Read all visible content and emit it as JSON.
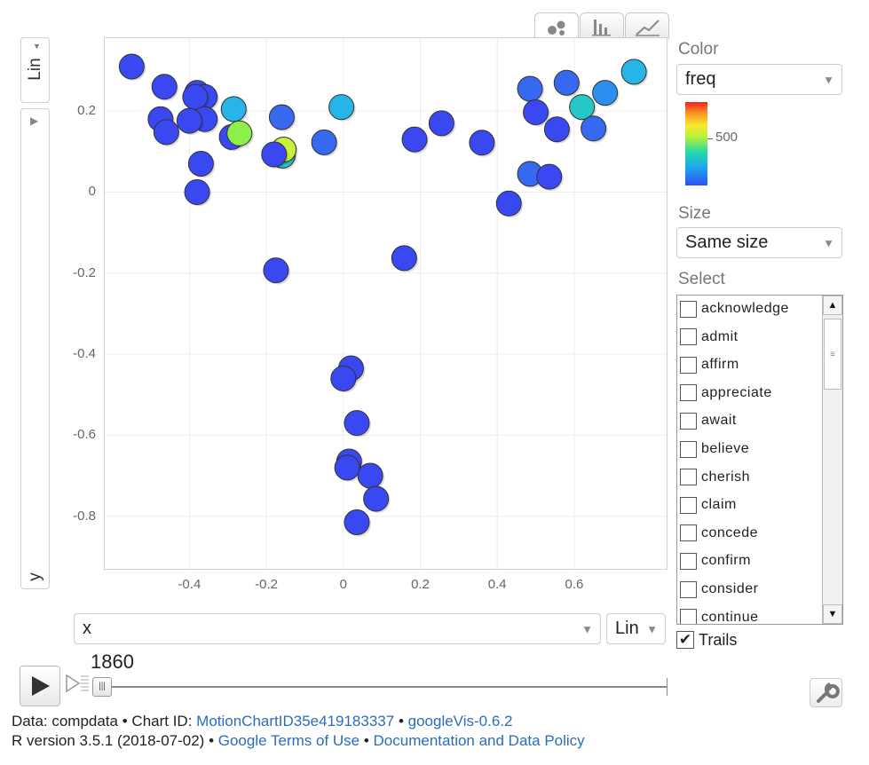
{
  "chart_type_tabs": [
    {
      "name": "bubble-view-tab",
      "icon": "bubble-chart-icon",
      "active": true
    },
    {
      "name": "bar-view-tab",
      "icon": "bar-chart-icon",
      "active": false
    },
    {
      "name": "line-view-tab",
      "icon": "line-chart-icon",
      "active": false
    }
  ],
  "y_axis": {
    "scale_label": "Lin",
    "variable": "y"
  },
  "x_axis": {
    "variable": "x",
    "scale_label": "Lin"
  },
  "color_panel": {
    "label": "Color",
    "value": "freq",
    "legend_tick": "500"
  },
  "size_panel": {
    "label": "Size",
    "value": "Same size"
  },
  "select_panel": {
    "label": "Select",
    "items": [
      "acknowledge",
      "admit",
      "affirm",
      "appreciate",
      "await",
      "believe",
      "cherish",
      "claim",
      "concede",
      "confirm",
      "consider",
      "continue"
    ]
  },
  "trails": {
    "label": "Trails",
    "checked": true
  },
  "time": {
    "current": "1860"
  },
  "footer": {
    "line1_prefix": "Data: compdata • Chart ID: ",
    "chart_id": "MotionChartID35e419183337",
    "sep": " • ",
    "version": "googleVis-0.6.2",
    "line2_prefix": "R version 3.5.1 (2018-07-02) • ",
    "terms": "Google Terms of Use",
    "policy": "Documentation and Data Policy"
  },
  "colors": {
    "bubble_low": "#3a48f2",
    "bubble_edge": "#333333",
    "link": "#2a6ebb"
  },
  "chart_data": {
    "type": "scatter",
    "xlim": [
      -0.62,
      0.84
    ],
    "ylim": [
      -0.93,
      0.38
    ],
    "xticks": [
      "-0.4",
      "-0.2",
      "0",
      "0.2",
      "0.4",
      "0.6"
    ],
    "xtick_values": [
      -0.4,
      -0.2,
      0,
      0.2,
      0.4,
      0.6
    ],
    "yticks": [
      "0.2",
      "0",
      "-0.2",
      "-0.4",
      "-0.6",
      "-0.8"
    ],
    "ytick_values": [
      0.2,
      0,
      -0.2,
      -0.4,
      -0.6,
      -0.8
    ],
    "grid": true,
    "color_variable": "freq",
    "size_variable": "Same size",
    "points": [
      {
        "x": -0.55,
        "y": 0.31,
        "c": "#3a48f2"
      },
      {
        "x": -0.465,
        "y": 0.26,
        "c": "#3a48f2"
      },
      {
        "x": -0.475,
        "y": 0.18,
        "c": "#3a48f2"
      },
      {
        "x": -0.46,
        "y": 0.148,
        "c": "#3a48f2"
      },
      {
        "x": -0.38,
        "y": 0.245,
        "c": "#3a48f2"
      },
      {
        "x": -0.36,
        "y": 0.235,
        "c": "#3a48f2"
      },
      {
        "x": -0.385,
        "y": 0.235,
        "c": "#3a48f2"
      },
      {
        "x": -0.36,
        "y": 0.18,
        "c": "#3a48f2"
      },
      {
        "x": -0.4,
        "y": 0.176,
        "c": "#3a48f2"
      },
      {
        "x": -0.37,
        "y": 0.07,
        "c": "#3a48f2"
      },
      {
        "x": -0.38,
        "y": 0.0,
        "c": "#3a48f2"
      },
      {
        "x": -0.29,
        "y": 0.136,
        "c": "#3a48f2"
      },
      {
        "x": -0.285,
        "y": 0.205,
        "c": "#27b5e9"
      },
      {
        "x": -0.27,
        "y": 0.145,
        "c": "#8cf04a"
      },
      {
        "x": -0.16,
        "y": 0.185,
        "c": "#3768f0"
      },
      {
        "x": -0.158,
        "y": 0.09,
        "c": "#26c7c7"
      },
      {
        "x": -0.155,
        "y": 0.105,
        "c": "#c9f03c"
      },
      {
        "x": -0.18,
        "y": 0.093,
        "c": "#3a48f2"
      },
      {
        "x": -0.175,
        "y": -0.193,
        "c": "#3a48f2"
      },
      {
        "x": -0.05,
        "y": 0.123,
        "c": "#3768f0"
      },
      {
        "x": -0.005,
        "y": 0.21,
        "c": "#27b5e9"
      },
      {
        "x": 0.185,
        "y": 0.13,
        "c": "#3a48f2"
      },
      {
        "x": 0.255,
        "y": 0.17,
        "c": "#3a48f2"
      },
      {
        "x": 0.36,
        "y": 0.122,
        "c": "#3a48f2"
      },
      {
        "x": 0.158,
        "y": -0.163,
        "c": "#3a48f2"
      },
      {
        "x": 0.43,
        "y": -0.028,
        "c": "#3a48f2"
      },
      {
        "x": 0.485,
        "y": 0.255,
        "c": "#3768f0"
      },
      {
        "x": 0.5,
        "y": 0.197,
        "c": "#3a48f2"
      },
      {
        "x": 0.485,
        "y": 0.045,
        "c": "#3768f0"
      },
      {
        "x": 0.535,
        "y": 0.038,
        "c": "#3a48f2"
      },
      {
        "x": 0.555,
        "y": 0.155,
        "c": "#3a48f2"
      },
      {
        "x": 0.58,
        "y": 0.27,
        "c": "#3768f0"
      },
      {
        "x": 0.62,
        "y": 0.21,
        "c": "#26c7c7"
      },
      {
        "x": 0.65,
        "y": 0.157,
        "c": "#3768f0"
      },
      {
        "x": 0.68,
        "y": 0.245,
        "c": "#2a8ff0"
      },
      {
        "x": 0.755,
        "y": 0.297,
        "c": "#27b5e9"
      },
      {
        "x": 0.02,
        "y": -0.435,
        "c": "#3a48f2"
      },
      {
        "x": 0.0,
        "y": -0.46,
        "c": "#3a48f2"
      },
      {
        "x": 0.035,
        "y": -0.57,
        "c": "#3a48f2"
      },
      {
        "x": 0.015,
        "y": -0.665,
        "c": "#3a48f2"
      },
      {
        "x": 0.01,
        "y": -0.68,
        "c": "#3a48f2"
      },
      {
        "x": 0.07,
        "y": -0.7,
        "c": "#3a48f2"
      },
      {
        "x": 0.085,
        "y": -0.757,
        "c": "#3a48f2"
      },
      {
        "x": 0.035,
        "y": -0.815,
        "c": "#3a48f2"
      }
    ]
  }
}
